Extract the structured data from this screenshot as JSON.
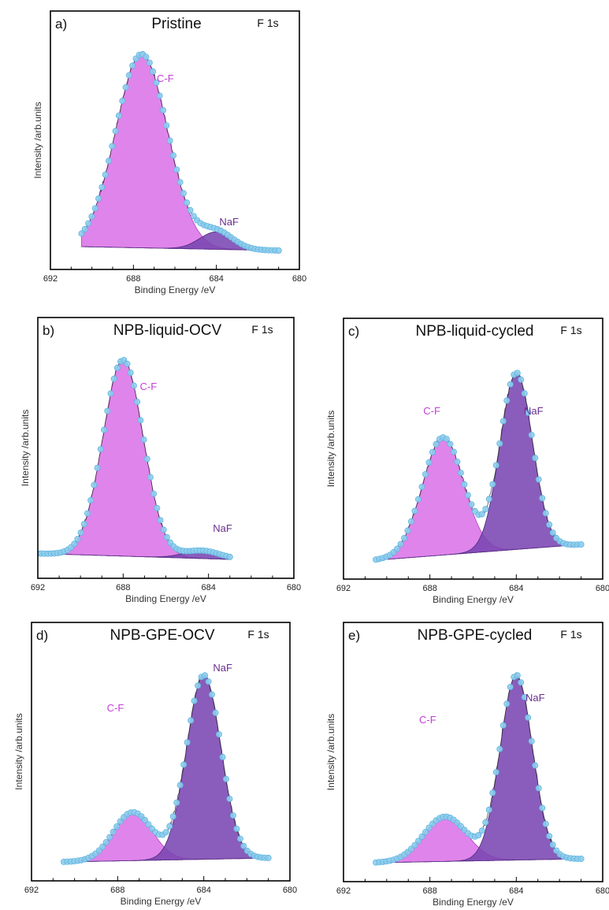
{
  "figure": {
    "core_level": "F 1s",
    "colors": {
      "cf": "#d96ee6",
      "naf": "#7a45b2",
      "envelope": "#8ecfee",
      "envelope_edge": "#5fb3e0",
      "raw": "#333333",
      "cf_label": "#c23fd6",
      "naf_label": "#6a2d8f"
    }
  },
  "chart_data": [
    {
      "type": "area",
      "id": "a",
      "letter": "a)",
      "title": "Pristine",
      "core_level": "F 1s",
      "xlabel": "Binding Energy /eV",
      "ylabel": "Intensity /arb.units",
      "x_range": [
        692,
        680
      ],
      "x_ticks": [
        "692",
        "688",
        "684",
        "680"
      ],
      "x_axis_reversed": true,
      "fit_range": [
        690.5,
        681
      ],
      "series": [
        {
          "name": "C-F",
          "center": 687.6,
          "height": 1.0,
          "width": 1.25
        },
        {
          "name": "NaF",
          "center": 684.0,
          "height": 0.09,
          "width": 0.8
        }
      ],
      "baseline": [
        0.02,
        0.0
      ]
    },
    {
      "type": "area",
      "id": "b",
      "letter": "b)",
      "title": "NPB-liquid-OCV",
      "core_level": "F 1s",
      "xlabel": "Binding Energy /eV",
      "ylabel": "Intensity /arb.units",
      "x_range": [
        692,
        680
      ],
      "x_ticks": [
        "692",
        "688",
        "684",
        "680"
      ],
      "x_axis_reversed": true,
      "fit_range": [
        692,
        683
      ],
      "series": [
        {
          "name": "C-F",
          "center": 688.0,
          "height": 1.0,
          "width": 0.95
        },
        {
          "name": "NaF",
          "center": 684.3,
          "height": 0.04,
          "width": 0.85
        }
      ],
      "baseline": [
        0.03,
        0.0
      ]
    },
    {
      "type": "area",
      "id": "c",
      "letter": "c)",
      "title": "NPB-liquid-cycled",
      "core_level": "F 1s",
      "xlabel": "Binding Energy /eV",
      "ylabel": "Intensity /arb.units",
      "x_range": [
        692,
        680
      ],
      "x_ticks": [
        "692",
        "688",
        "684",
        "680"
      ],
      "x_axis_reversed": true,
      "fit_range": [
        690.5,
        681
      ],
      "series": [
        {
          "name": "C-F",
          "center": 687.4,
          "height": 0.6,
          "width": 0.95
        },
        {
          "name": "NaF",
          "center": 684.0,
          "height": 0.9,
          "width": 0.75
        }
      ],
      "baseline": [
        0.0,
        0.08
      ]
    },
    {
      "type": "area",
      "id": "d",
      "letter": "d)",
      "title": "NPB-GPE-OCV",
      "core_level": "F 1s",
      "xlabel": "Binding Energy /eV",
      "ylabel": "Intensity /arb.units",
      "x_range": [
        692,
        680
      ],
      "x_ticks": [
        "692",
        "688",
        "684",
        "680"
      ],
      "x_axis_reversed": true,
      "fit_range": [
        690.5,
        681
      ],
      "series": [
        {
          "name": "C-F",
          "center": 687.3,
          "height": 0.25,
          "width": 0.9
        },
        {
          "name": "NaF",
          "center": 684.0,
          "height": 0.95,
          "width": 0.8
        }
      ],
      "baseline": [
        0.0,
        0.02
      ]
    },
    {
      "type": "area",
      "id": "e",
      "letter": "e)",
      "title": "NPB-GPE-cycled",
      "core_level": "F 1s",
      "xlabel": "Binding Energy /eV",
      "ylabel": "Intensity /arb.units",
      "x_range": [
        692,
        680
      ],
      "x_ticks": [
        "692",
        "688",
        "684",
        "680"
      ],
      "x_axis_reversed": true,
      "fit_range": [
        690.5,
        681
      ],
      "series": [
        {
          "name": "C-F",
          "center": 687.3,
          "height": 0.23,
          "width": 1.0
        },
        {
          "name": "NaF",
          "center": 684.0,
          "height": 0.95,
          "width": 0.75
        }
      ],
      "baseline": [
        0.0,
        0.02
      ]
    }
  ]
}
